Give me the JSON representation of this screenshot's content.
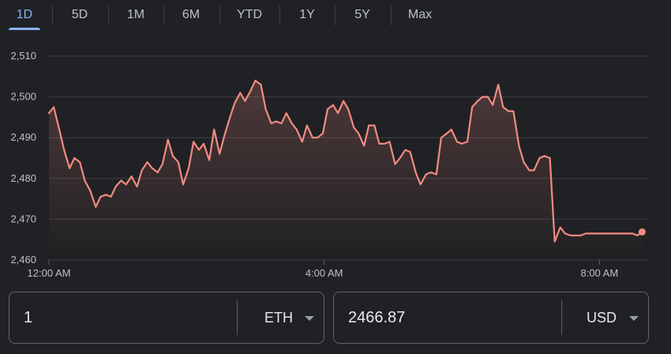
{
  "tabs": [
    {
      "label": "1D",
      "active": true
    },
    {
      "label": "5D",
      "active": false
    },
    {
      "label": "1M",
      "active": false
    },
    {
      "label": "6M",
      "active": false
    },
    {
      "label": "YTD",
      "active": false
    },
    {
      "label": "1Y",
      "active": false
    },
    {
      "label": "5Y",
      "active": false
    },
    {
      "label": "Max",
      "active": false
    }
  ],
  "colors": {
    "line": "#f28b82",
    "accent": "#8ab4f8",
    "background": "#202124"
  },
  "chart_data": {
    "type": "line",
    "title": "",
    "xlabel": "",
    "ylabel": "",
    "xlim": [
      0,
      8.65
    ],
    "ylim": [
      2460,
      2510
    ],
    "y_ticks": [
      2460,
      2470,
      2480,
      2490,
      2500,
      2510
    ],
    "y_tick_labels": [
      "2,460",
      "2,470",
      "2,480",
      "2,490",
      "2,500",
      "2,510"
    ],
    "x_ticks": [
      0,
      4,
      8
    ],
    "x_tick_labels": [
      "12:00 AM",
      "4:00 AM",
      "8:00 AM"
    ],
    "grid": true,
    "x_unit": "hours since 12:00 AM",
    "series": [
      {
        "name": "",
        "x": [
          0,
          0.07,
          0.15,
          0.22,
          0.3,
          0.37,
          0.45,
          0.52,
          0.6,
          0.68,
          0.75,
          0.83,
          0.9,
          0.97,
          1.05,
          1.12,
          1.2,
          1.28,
          1.35,
          1.43,
          1.5,
          1.58,
          1.65,
          1.73,
          1.8,
          1.88,
          1.95,
          2.03,
          2.1,
          2.18,
          2.25,
          2.33,
          2.4,
          2.48,
          2.55,
          2.63,
          2.7,
          2.78,
          2.85,
          2.93,
          3,
          3.08,
          3.15,
          3.23,
          3.3,
          3.38,
          3.45,
          3.53,
          3.6,
          3.68,
          3.75,
          3.83,
          3.9,
          3.98,
          4.05,
          4.13,
          4.2,
          4.28,
          4.35,
          4.43,
          4.5,
          4.58,
          4.65,
          4.73,
          4.8,
          4.88,
          4.95,
          5.03,
          5.1,
          5.18,
          5.25,
          5.33,
          5.4,
          5.48,
          5.55,
          5.63,
          5.7,
          5.78,
          5.85,
          5.93,
          6,
          6.08,
          6.15,
          6.23,
          6.3,
          6.38,
          6.45,
          6.53,
          6.6,
          6.68,
          6.75,
          6.83,
          6.9,
          6.98,
          7.05,
          7.13,
          7.2,
          7.28,
          7.35,
          7.43,
          7.5,
          7.58,
          7.65,
          7.73,
          7.8,
          7.88,
          7.95,
          8.03,
          8.1,
          8.18,
          8.25,
          8.33,
          8.4,
          8.48,
          8.55,
          8.62
        ],
        "values": [
          2496,
          2497.5,
          2492,
          2487,
          2482.5,
          2485,
          2484,
          2479.5,
          2477,
          2473,
          2475.5,
          2476,
          2475.5,
          2478,
          2479.5,
          2478.5,
          2480.5,
          2478,
          2482,
          2484,
          2482.5,
          2481.5,
          2483.5,
          2489.5,
          2485.5,
          2484,
          2478.5,
          2482.5,
          2489,
          2487,
          2488.5,
          2484.5,
          2492,
          2486,
          2490.5,
          2495,
          2498.5,
          2501,
          2499,
          2501.5,
          2504,
          2503,
          2497,
          2493.5,
          2494,
          2493.5,
          2496,
          2493.5,
          2492,
          2489,
          2493,
          2490,
          2490,
          2491,
          2497,
          2498,
          2496,
          2499,
          2497,
          2492.5,
          2491,
          2488,
          2493,
          2493,
          2488.5,
          2488.5,
          2489,
          2483.5,
          2485,
          2487,
          2486.5,
          2481.5,
          2478.5,
          2481,
          2481.5,
          2481,
          2490,
          2491,
          2492,
          2489,
          2488.5,
          2489,
          2497.5,
          2499,
          2500,
          2500,
          2498,
          2503,
          2497.5,
          2496.5,
          2496.5,
          2488,
          2484,
          2482,
          2482,
          2485,
          2485.5,
          2485,
          2464.5,
          2468,
          2466.5,
          2466,
          2466,
          2466,
          2466.5,
          2466.5,
          2466.5,
          2466.5,
          2466.5,
          2466.5,
          2466.5,
          2466.5,
          2466.5,
          2466.5,
          2466,
          2466.87
        ]
      }
    ]
  },
  "converter": {
    "left": {
      "amount": "1",
      "unit": "ETH"
    },
    "right": {
      "amount": "2466.87",
      "unit": "USD"
    }
  }
}
